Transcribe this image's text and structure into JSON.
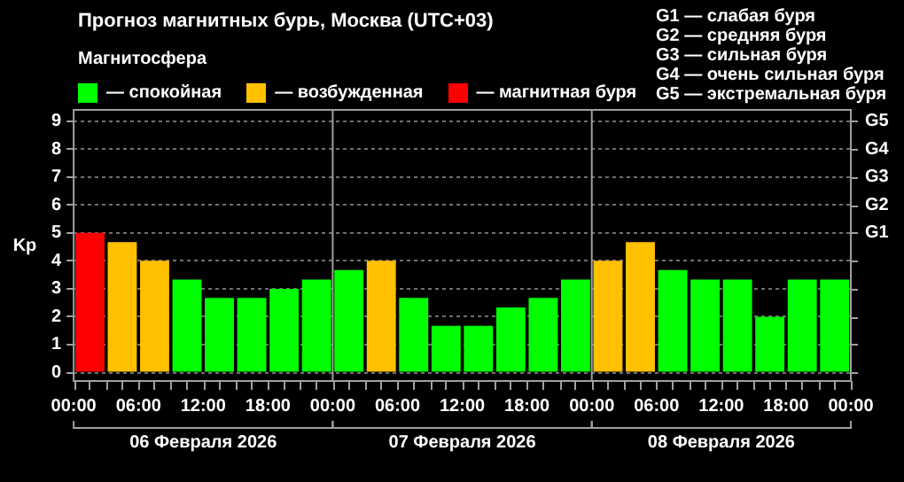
{
  "chart_data": {
    "type": "bar",
    "title": "Прогноз магнитных бурь, Москва (UTC+03)",
    "legend_title": "Магнитосфера",
    "ylabel": "Kp",
    "x": [
      "2026-02-06T01:30",
      "2026-02-06T04:30",
      "2026-02-06T07:30",
      "2026-02-06T10:30",
      "2026-02-06T13:30",
      "2026-02-06T16:30",
      "2026-02-06T19:30",
      "2026-02-06T22:30",
      "2026-02-07T01:30",
      "2026-02-07T04:30",
      "2026-02-07T07:30",
      "2026-02-07T10:30",
      "2026-02-07T13:30",
      "2026-02-07T16:30",
      "2026-02-07T19:30",
      "2026-02-07T22:30",
      "2026-02-08T01:30",
      "2026-02-08T04:30",
      "2026-02-08T07:30",
      "2026-02-08T10:30",
      "2026-02-08T13:30",
      "2026-02-08T16:30",
      "2026-02-08T19:30",
      "2026-02-08T22:30"
    ],
    "series": [
      {
        "name": "— спокойная",
        "color": "#00ff00",
        "values": [
          null,
          null,
          null,
          3.33,
          2.67,
          2.67,
          3,
          3.33,
          3.67,
          null,
          2.67,
          1.67,
          1.67,
          2.33,
          2.67,
          3.33,
          null,
          null,
          3.67,
          3.33,
          3.33,
          2,
          3.33,
          3.33
        ]
      },
      {
        "name": "— возбужденная",
        "color": "#ffc000",
        "values": [
          null,
          4.67,
          4,
          null,
          null,
          null,
          null,
          null,
          null,
          4,
          null,
          null,
          null,
          null,
          null,
          null,
          4,
          4.67,
          null,
          null,
          null,
          null,
          null,
          null
        ]
      },
      {
        "name": "— магнитная буря",
        "color": "#ff0000",
        "values": [
          5,
          null,
          null,
          null,
          null,
          null,
          null,
          null,
          null,
          null,
          null,
          null,
          null,
          null,
          null,
          null,
          null,
          null,
          null,
          null,
          null,
          null,
          null,
          null
        ]
      }
    ],
    "stacked": true,
    "legend": "top left",
    "grid": "y",
    "xlim": [
      "2026-02-06T00:00",
      "2026-02-09T00:00"
    ],
    "xticks": [
      {
        "value": "2026-02-06T00:00",
        "label": "00:00"
      },
      {
        "value": "2026-02-06T03:00",
        "label": null
      },
      {
        "value": "2026-02-06T06:00",
        "label": "06:00"
      },
      {
        "value": "2026-02-06T09:00",
        "label": null
      },
      {
        "value": "2026-02-06T12:00",
        "label": "12:00"
      },
      {
        "value": "2026-02-06T15:00",
        "label": null
      },
      {
        "value": "2026-02-06T18:00",
        "label": "18:00"
      },
      {
        "value": "2026-02-06T21:00",
        "label": null
      },
      {
        "value": "2026-02-07T00:00",
        "label": "00:00"
      },
      {
        "value": "2026-02-07T03:00",
        "label": null
      },
      {
        "value": "2026-02-07T06:00",
        "label": "06:00"
      },
      {
        "value": "2026-02-07T09:00",
        "label": null
      },
      {
        "value": "2026-02-07T12:00",
        "label": "12:00"
      },
      {
        "value": "2026-02-07T15:00",
        "label": null
      },
      {
        "value": "2026-02-07T18:00",
        "label": "18:00"
      },
      {
        "value": "2026-02-07T21:00",
        "label": null
      },
      {
        "value": "2026-02-08T00:00",
        "label": "00:00"
      },
      {
        "value": "2026-02-08T03:00",
        "label": null
      },
      {
        "value": "2026-02-08T06:00",
        "label": "06:00"
      },
      {
        "value": "2026-02-08T09:00",
        "label": null
      },
      {
        "value": "2026-02-08T12:00",
        "label": "12:00"
      },
      {
        "value": "2026-02-08T15:00",
        "label": null
      },
      {
        "value": "2026-02-08T18:00",
        "label": "18:00"
      },
      {
        "value": "2026-02-08T21:00",
        "label": null
      },
      {
        "value": "2026-02-09T00:00",
        "label": "00:00"
      }
    ],
    "ylim": [
      -0.3,
      9.4
    ],
    "yticks": [
      0,
      1,
      2,
      3,
      4,
      5,
      6,
      7,
      8,
      9
    ],
    "ref_lines": [
      {
        "axis": "x",
        "value": "2026-02-07T00:00",
        "color": "#a0a0a0"
      },
      {
        "axis": "x",
        "value": "2026-02-08T00:00",
        "color": "#a0a0a0"
      }
    ],
    "annotations": [
      "G1 — слабая буря",
      "G2 — средняя буря",
      "G3 — сильная буря",
      "G4 — очень сильная буря",
      "G5 — экстремальная буря",
      "06 Февраля 2026",
      "07 Февраля 2026",
      "08 Февраля 2026",
      "G1",
      "G2",
      "G3",
      "G4",
      "G5"
    ]
  }
}
